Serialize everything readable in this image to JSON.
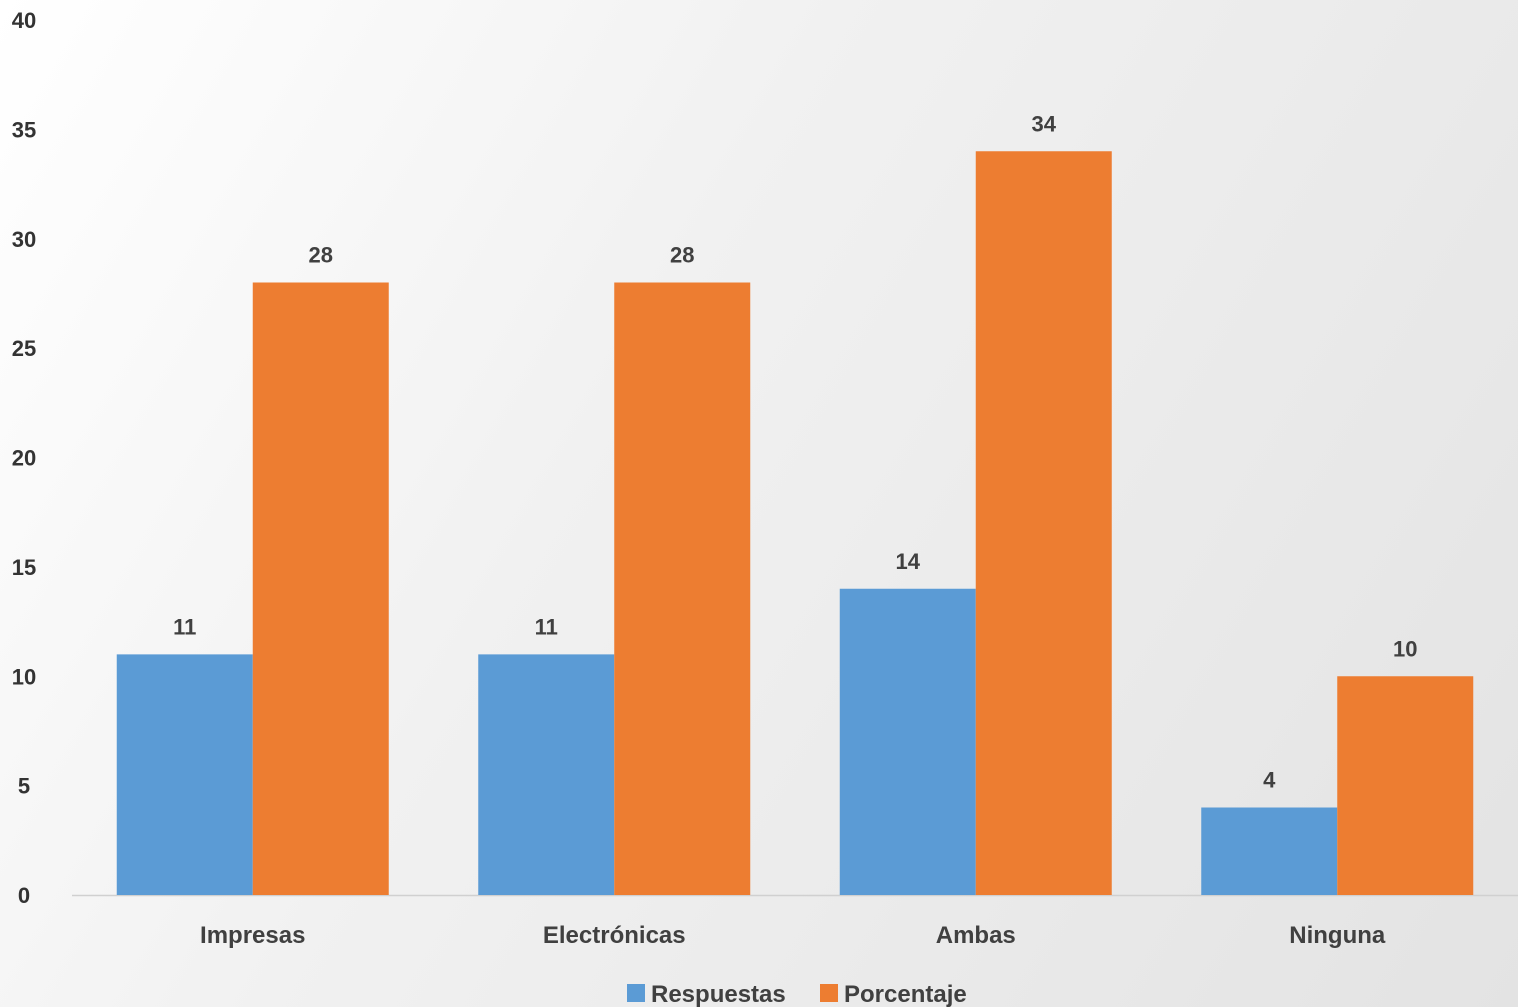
{
  "colors": {
    "Respuestas": "#5b9bd5",
    "Porcentaje": "#ed7d31"
  },
  "chart_data": {
    "type": "bar",
    "categories": [
      "Impresas",
      "Electrónicas",
      "Ambas",
      "Ninguna"
    ],
    "series": [
      {
        "name": "Respuestas",
        "values": [
          11,
          11,
          14,
          4
        ]
      },
      {
        "name": "Porcentaje",
        "values": [
          28,
          28,
          34,
          10
        ]
      }
    ],
    "yticks": [
      0,
      5,
      10,
      15,
      20,
      25,
      30,
      35,
      40
    ],
    "ylim": [
      0,
      40
    ],
    "title": "",
    "xlabel": "",
    "ylabel": "",
    "grid": false,
    "legend": "bottom",
    "data_labels": true
  }
}
